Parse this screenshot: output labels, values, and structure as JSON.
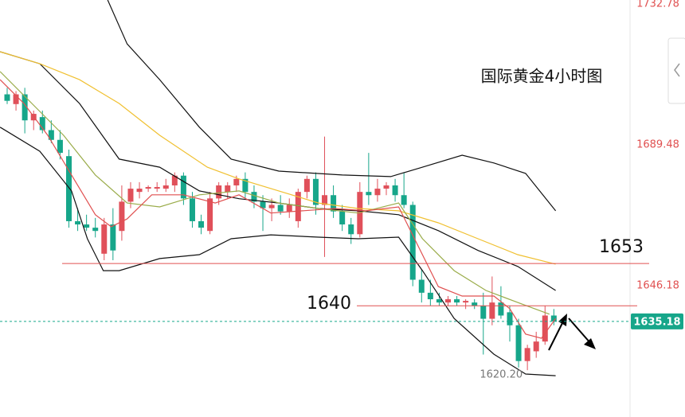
{
  "chart_data": {
    "type": "candlestick",
    "title": "国际黄金4小时图",
    "up_color": "#e0505a",
    "down_color": "#16a68a",
    "candles": {
      "open": [
        1705,
        1702,
        1705,
        1697,
        1698,
        1694,
        1691,
        1686,
        1666,
        1665,
        1664,
        1656,
        1665,
        1663,
        1672,
        1675,
        1676,
        1676,
        1676,
        1677,
        1680,
        1673,
        1666,
        1663,
        1673,
        1675,
        1677,
        1679,
        1675,
        1672,
        1670,
        1671,
        1669,
        1666,
        1675,
        1679,
        1671,
        1674,
        1669,
        1665,
        1662,
        1675,
        1674,
        1676,
        1677,
        1674,
        1671,
        1648,
        1644,
        1642,
        1641,
        1642,
        1641,
        1641,
        1640,
        1636,
        1641,
        1638,
        1634,
        1623,
        1626,
        1629,
        1637
      ],
      "high": [
        1707,
        1706,
        1707,
        1700,
        1700,
        1697,
        1694,
        1688,
        1670,
        1668,
        1667,
        1667,
        1670,
        1677,
        1678,
        1678,
        1677,
        1678,
        1679,
        1681,
        1681,
        1675,
        1668,
        1675,
        1678,
        1678,
        1680,
        1681,
        1677,
        1674,
        1673,
        1674,
        1673,
        1676,
        1680,
        1681,
        1692,
        1677,
        1671,
        1667,
        1678,
        1687,
        1679,
        1678,
        1679,
        1681,
        1672,
        1651,
        1648,
        1644,
        1643,
        1643,
        1642,
        1642,
        1644,
        1649,
        1646,
        1640,
        1636,
        1628,
        1632,
        1640,
        1639
      ],
      "low": [
        1702,
        1700,
        1693,
        1694,
        1693,
        1690,
        1685,
        1664,
        1663,
        1663,
        1661,
        1654,
        1654,
        1660,
        1670,
        1673,
        1675,
        1675,
        1675,
        1675,
        1671,
        1664,
        1662,
        1662,
        1671,
        1673,
        1675,
        1673,
        1670,
        1663,
        1666,
        1668,
        1667,
        1664,
        1673,
        1668,
        1655,
        1667,
        1663,
        1659,
        1661,
        1671,
        1672,
        1674,
        1672,
        1670,
        1646,
        1641,
        1640,
        1640,
        1640,
        1640,
        1639,
        1639,
        1625,
        1634,
        1636,
        1629,
        1621,
        1620.2,
        1624,
        1628,
        1634
      ],
      "close": [
        1703,
        1705,
        1697,
        1699,
        1694,
        1691,
        1687,
        1666,
        1665,
        1664,
        1663,
        1665,
        1657,
        1672,
        1676,
        1676,
        1676.5,
        1676.5,
        1677,
        1680,
        1673,
        1666,
        1664,
        1673,
        1677,
        1677,
        1679,
        1675,
        1672,
        1670,
        1671,
        1669,
        1671,
        1675,
        1679,
        1671,
        1674,
        1669,
        1665,
        1662,
        1675,
        1674,
        1676,
        1677,
        1674,
        1671,
        1648,
        1644,
        1642,
        1641,
        1642,
        1641,
        1641.5,
        1640,
        1636,
        1641,
        1637,
        1634,
        1623,
        1627,
        1629,
        1637,
        1635.18
      ]
    },
    "series": [
      {
        "color": "#111111",
        "x": [
          11.4,
          13.6,
          17.3,
          21.8,
          25.4,
          30.8,
          38.0,
          43.5,
          47.1,
          51.6,
          55.2,
          58.8,
          62.2
        ],
        "values": [
          1734.0,
          1720.5,
          1709.5,
          1694.9,
          1685.1,
          1681.4,
          1680.2,
          1679.7,
          1682.6,
          1686.3,
          1683.9,
          1680.7,
          1669.2
        ]
      },
      {
        "color": "#111111",
        "x": [
          -0.8,
          3.7,
          8.2,
          12.7,
          17.3,
          21.8,
          26.3,
          30.8,
          35.3,
          39.8,
          44.4,
          48.9,
          53.4,
          57.9,
          62.2
        ],
        "values": [
          1718.1,
          1714.4,
          1702.2,
          1685.1,
          1682.6,
          1675.3,
          1672.9,
          1671.6,
          1669.9,
          1669.2,
          1668.0,
          1663.1,
          1657.0,
          1652.1,
          1644.7
        ]
      },
      {
        "color": "#111111",
        "x": [
          -0.8,
          3.7,
          7.3,
          9.1,
          10.9,
          12.7,
          17.3,
          21.8,
          25.4,
          29.9,
          35.3,
          39.8,
          44.4,
          47.1,
          50.7,
          55.2,
          58.8,
          62.2
        ],
        "values": [
          1694.9,
          1687.5,
          1675.3,
          1660.6,
          1650.8,
          1650.8,
          1654.5,
          1655.7,
          1660.6,
          1661.8,
          1661.1,
          1660.6,
          1661.1,
          1650.8,
          1636.1,
          1625.1,
          1619.0,
          1618.5
        ]
      },
      {
        "color": "#f0c030",
        "x": [
          -0.8,
          3.7,
          8.2,
          12.7,
          17.3,
          22.7,
          26.3,
          30.8,
          35.3,
          39.8,
          44.4,
          48.9,
          53.4,
          57.9,
          62.2
        ],
        "values": [
          1718.1,
          1714.4,
          1709.5,
          1702.2,
          1692.4,
          1682.6,
          1679.0,
          1675.3,
          1671.6,
          1669.9,
          1669.2,
          1665.5,
          1660.6,
          1655.7,
          1652.8
        ]
      },
      {
        "color": "#9aac4a",
        "x": [
          -0.8,
          2.8,
          6.4,
          10.0,
          13.6,
          17.3,
          21.8,
          26.3,
          30.8,
          35.3,
          39.8,
          44.4,
          47.1,
          50.7,
          54.3,
          57.9,
          61.5
        ],
        "values": [
          1712.0,
          1702.2,
          1692.4,
          1680.2,
          1671.6,
          1670.4,
          1674.1,
          1675.3,
          1671.6,
          1669.9,
          1668.5,
          1671.6,
          1660.6,
          1650.8,
          1644.7,
          1641.0,
          1637.4
        ]
      },
      {
        "color": "#e05050",
        "x": [
          -0.8,
          1.9,
          4.6,
          7.3,
          10.0,
          11.8,
          13.6,
          16.4,
          20.0,
          23.6,
          26.3,
          29.9,
          33.5,
          37.1,
          40.7,
          44.4,
          46.2,
          48.9,
          51.6,
          55.2,
          57.0,
          58.8,
          60.6,
          62.2
        ],
        "values": [
          1709.5,
          1702.2,
          1692.4,
          1680.2,
          1668.0,
          1664.3,
          1666.7,
          1674.1,
          1674.1,
          1671.6,
          1674.1,
          1668.5,
          1669.2,
          1669.9,
          1669.2,
          1670.4,
          1660.6,
          1645.9,
          1643.0,
          1643.0,
          1639.1,
          1631.3,
          1630.0,
          1636.1
        ]
      }
    ],
    "levels": [
      1653,
      1640
    ],
    "level_color": "#e05050",
    "last_price": 1635.18,
    "last_price_color": "#16a68a",
    "low_label": {
      "value": 1620.2,
      "label": "1620.20"
    },
    "ylim": [
      1605.8,
      1734.0
    ],
    "yticks": [
      1732.78,
      1689.48,
      1646.18
    ]
  }
}
